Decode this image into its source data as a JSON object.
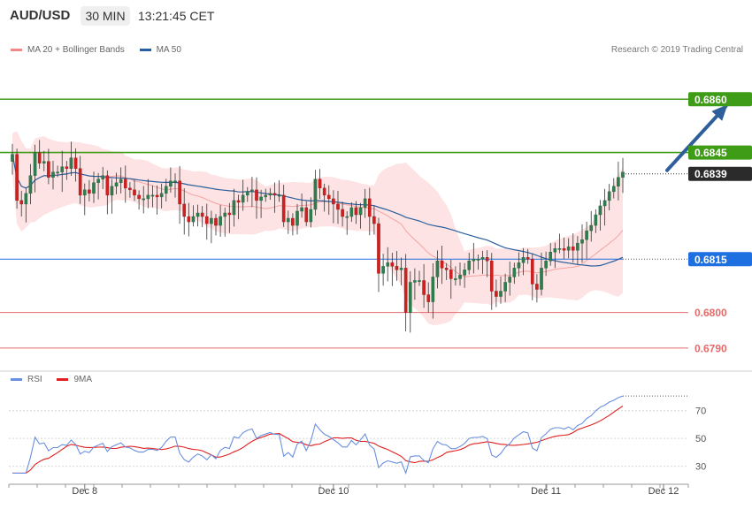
{
  "header": {
    "symbol": "AUD/USD",
    "timeframe": "30 MIN",
    "time": "13:21:45 CET"
  },
  "legend": {
    "items": [
      {
        "label": "MA 20 + Bollinger Bands",
        "color": "#f08a8a"
      },
      {
        "label": "MA 50",
        "color": "#2a5f9e"
      }
    ],
    "research": "Research © 2019 Trading Central"
  },
  "rsi_legend": {
    "items": [
      {
        "label": "RSI",
        "color": "#6a8fe0"
      },
      {
        "label": "9MA",
        "color": "#e02020"
      }
    ]
  },
  "chart_data": [
    {
      "type": "candlestick",
      "title": "AUD/USD 30 MIN",
      "ylim": [
        0.6784,
        0.6871
      ],
      "x_ticks": [
        {
          "label": "Dec 8",
          "index": 16
        },
        {
          "label": "Dec 10",
          "index": 71
        },
        {
          "label": "Dec 11",
          "index": 118
        },
        {
          "label": "Dec 12",
          "index": 144
        }
      ],
      "levels": [
        {
          "value": 0.686,
          "label": "0.6860",
          "color": "#3f9c16",
          "style": "resistance"
        },
        {
          "value": 0.6845,
          "label": "0.6845",
          "color": "#3f9c16",
          "style": "resistance"
        },
        {
          "value": 0.6839,
          "label": "0.6839",
          "color": "#2b2b2b",
          "style": "last-price"
        },
        {
          "value": 0.6815,
          "label": "0.6815",
          "color": "#1e6fe0",
          "style": "pivot"
        },
        {
          "value": 0.68,
          "label": "0.6800",
          "color": "#e56b6b",
          "style": "support"
        },
        {
          "value": 0.679,
          "label": "0.6790",
          "color": "#e56b6b",
          "style": "support"
        }
      ],
      "projection": {
        "from": {
          "index": 144,
          "value": 0.684
        },
        "to": {
          "index": 157,
          "value": 0.6858
        },
        "color": "#2f5f9a"
      },
      "candle_closes": [
        0.68445,
        0.68315,
        0.68305,
        0.68335,
        0.68385,
        0.6845,
        0.6842,
        0.68425,
        0.6838,
        0.68395,
        0.68395,
        0.6841,
        0.68405,
        0.68435,
        0.68405,
        0.6833,
        0.68345,
        0.68335,
        0.68365,
        0.68375,
        0.68385,
        0.6833,
        0.68355,
        0.68365,
        0.68375,
        0.6835,
        0.68345,
        0.6833,
        0.6832,
        0.6832,
        0.6833,
        0.6833,
        0.68325,
        0.68335,
        0.68355,
        0.6837,
        0.6837,
        0.68305,
        0.6827,
        0.68255,
        0.6827,
        0.6828,
        0.6827,
        0.6825,
        0.68265,
        0.68245,
        0.6827,
        0.6828,
        0.68275,
        0.68315,
        0.6831,
        0.6833,
        0.6834,
        0.68345,
        0.68315,
        0.68325,
        0.6833,
        0.68335,
        0.6833,
        0.6833,
        0.68255,
        0.68265,
        0.68245,
        0.68285,
        0.68295,
        0.68255,
        0.6829,
        0.68375,
        0.6835,
        0.6833,
        0.6832,
        0.68305,
        0.6829,
        0.6827,
        0.6827,
        0.68295,
        0.68275,
        0.68295,
        0.6832,
        0.6827,
        0.6825,
        0.6811,
        0.6813,
        0.6814,
        0.6813,
        0.6812,
        0.68125,
        0.68,
        0.68085,
        0.6809,
        0.6809,
        0.6805,
        0.6803,
        0.681,
        0.68145,
        0.68125,
        0.6812,
        0.68095,
        0.68095,
        0.68105,
        0.6812,
        0.68145,
        0.6815,
        0.6815,
        0.68155,
        0.68145,
        0.6806,
        0.68045,
        0.6806,
        0.68085,
        0.681,
        0.68125,
        0.6814,
        0.68155,
        0.6815,
        0.6808,
        0.68065,
        0.68125,
        0.68145,
        0.6817,
        0.6818,
        0.6818,
        0.68175,
        0.68185,
        0.68175,
        0.68195,
        0.68205,
        0.6823,
        0.68245,
        0.68275,
        0.683,
        0.68315,
        0.6834,
        0.68355,
        0.6838,
        0.68395
      ]
    },
    {
      "type": "line",
      "title": "RSI",
      "ylim": [
        17,
        87
      ],
      "y_ticks": [
        30,
        50,
        70
      ],
      "series": [
        {
          "name": "RSI",
          "color": "#6a8fe0"
        },
        {
          "name": "9MA",
          "color": "#e02020"
        }
      ]
    }
  ]
}
